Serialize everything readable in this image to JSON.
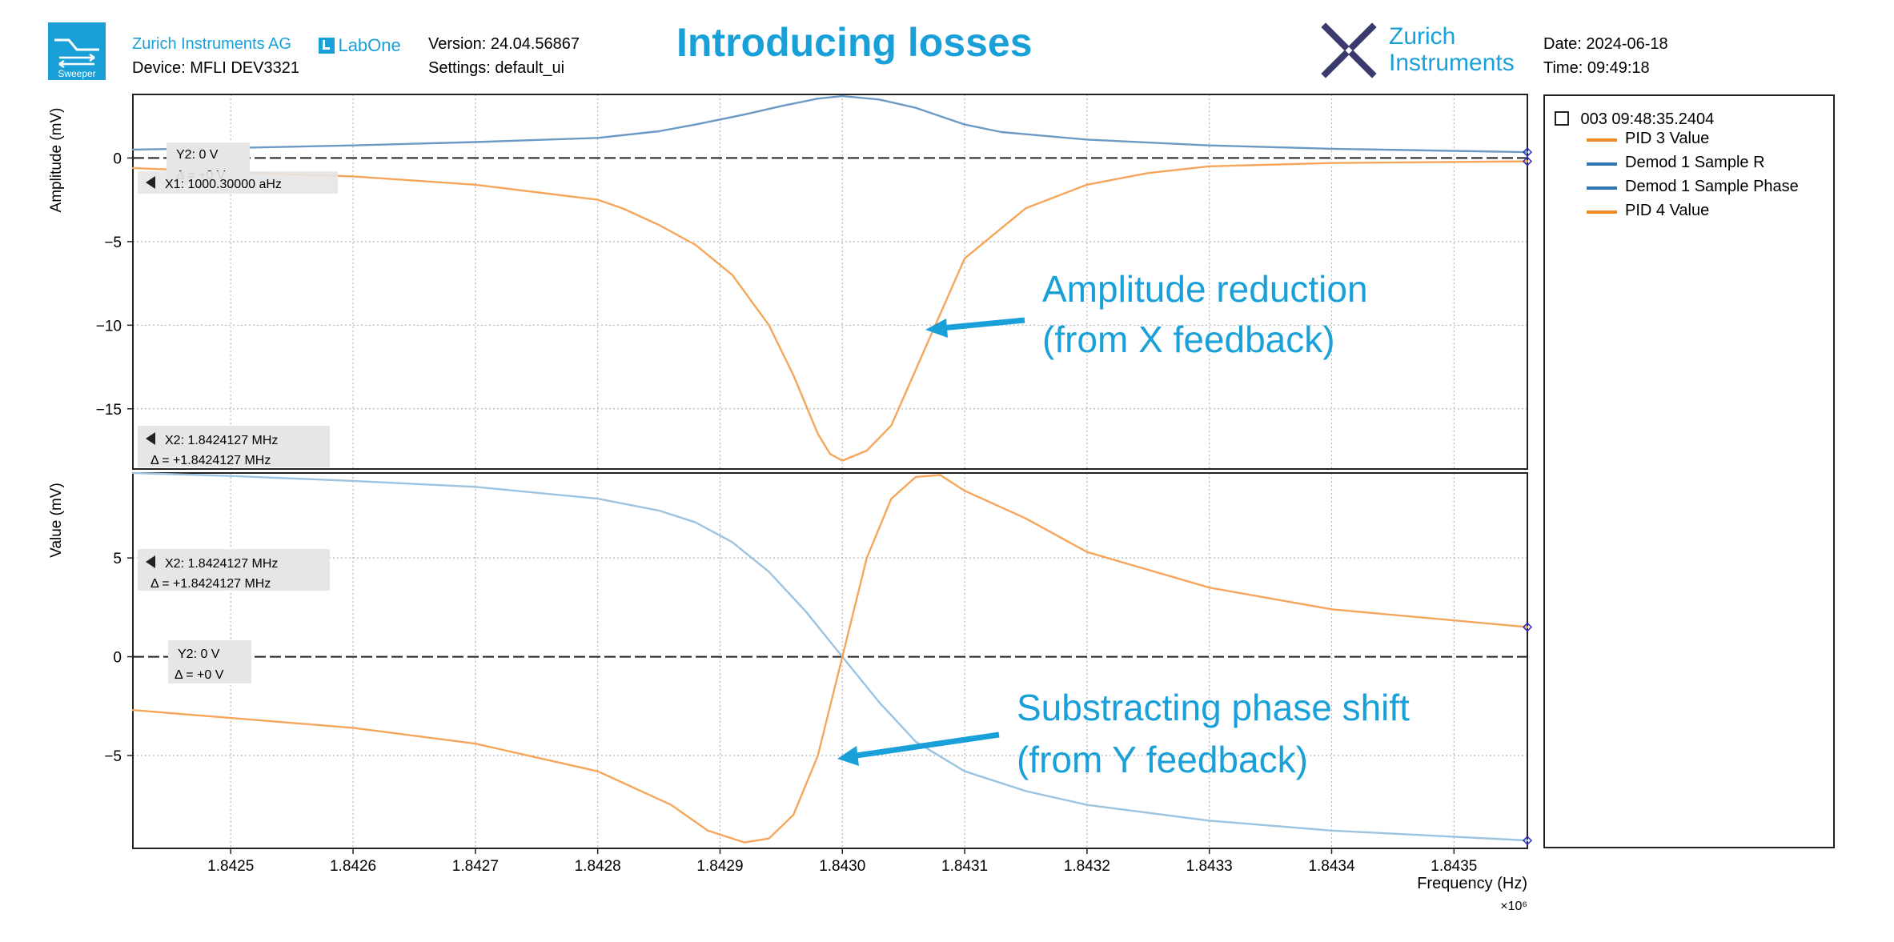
{
  "header": {
    "app_icon_label": "Sweeper",
    "company": "Zurich Instruments AG",
    "labone": "LabOne",
    "device": "Device: MFLI DEV3321",
    "version": "Version: 24.04.56867",
    "settings": "Settings: default_ui",
    "title": "Introducing losses",
    "logo_line1": "Zurich",
    "logo_line2": "Instruments",
    "date": "Date: 2024-06-18",
    "time": "Time: 09:49:18"
  },
  "legend": {
    "group_label": "003 09:48:35.2404",
    "items": [
      {
        "label": "PID 3 Value",
        "color": "#f08a24"
      },
      {
        "label": "Demod 1 Sample R",
        "color": "#2e75b6"
      },
      {
        "label": "Demod 1 Sample Phase",
        "color": "#2e75b6"
      },
      {
        "label": "PID 4 Value",
        "color": "#f08a24"
      }
    ]
  },
  "annotations": {
    "top_line1": "Amplitude reduction",
    "top_line2": "(from X feedback)",
    "bottom_line1": "Substracting phase shift",
    "bottom_line2": "(from Y feedback)"
  },
  "cursors": {
    "top_y2": "Y2: 0 V",
    "top_y2_delta": "Δ = +0 V",
    "top_x1": "X1: 1000.30000 aHz",
    "top_x2": "X2: 1.8424127 MHz",
    "top_x2_delta": "Δ = +1.8424127 MHz",
    "bottom_x2": "X2: 1.8424127 MHz",
    "bottom_x2_delta": "Δ = +1.8424127 MHz",
    "bottom_y2": "Y2: 0 V",
    "bottom_y2_delta": "Δ = +0 V"
  },
  "chart_data": [
    {
      "type": "line",
      "ylabel": "Amplitude (mV)",
      "xlim": [
        1.84242,
        1.84356
      ],
      "ylim": [
        -18.6,
        3.8
      ],
      "yticks": [
        0,
        -5,
        -10,
        -15
      ],
      "grid": true,
      "series": [
        {
          "name": "Demod 1 Sample R",
          "color": "#6a9ac4",
          "x": [
            1.84242,
            1.8425,
            1.8426,
            1.8427,
            1.8428,
            1.84285,
            1.84288,
            1.84292,
            1.84295,
            1.84298,
            1.843,
            1.84303,
            1.84306,
            1.8431,
            1.84313,
            1.8432,
            1.8433,
            1.8434,
            1.84356
          ],
          "y": [
            0.5,
            0.6,
            0.75,
            0.95,
            1.2,
            1.6,
            2.0,
            2.6,
            3.1,
            3.55,
            3.7,
            3.5,
            3.0,
            2.0,
            1.55,
            1.1,
            0.75,
            0.55,
            0.35
          ]
        },
        {
          "name": "PID 3 Value",
          "color": "#f5a65b",
          "x": [
            1.84242,
            1.8425,
            1.8426,
            1.8427,
            1.8428,
            1.84282,
            1.84285,
            1.84288,
            1.84291,
            1.84294,
            1.84296,
            1.84298,
            1.84299,
            1.843,
            1.84302,
            1.84304,
            1.84307,
            1.8431,
            1.84315,
            1.8432,
            1.84325,
            1.8433,
            1.8434,
            1.84356
          ],
          "y": [
            -0.6,
            -0.85,
            -1.1,
            -1.6,
            -2.5,
            -3.0,
            -4.0,
            -5.2,
            -7.0,
            -10.0,
            -13.0,
            -16.5,
            -17.7,
            -18.1,
            -17.5,
            -16.0,
            -11.0,
            -6.0,
            -3.0,
            -1.6,
            -0.9,
            -0.5,
            -0.3,
            -0.2
          ]
        }
      ]
    },
    {
      "type": "line",
      "ylabel": "Value (mV)",
      "xlabel": "Frequency (Hz)",
      "x_multiplier": "×10⁶",
      "xlim": [
        1.84242,
        1.84356
      ],
      "ylim": [
        -9.7,
        9.3
      ],
      "yticks": [
        5,
        0,
        -5
      ],
      "xticks": [
        "1.8425",
        "1.8426",
        "1.8427",
        "1.8428",
        "1.8429",
        "1.8430",
        "1.8431",
        "1.8432",
        "1.8433",
        "1.8434",
        "1.8435"
      ],
      "grid": true,
      "series": [
        {
          "name": "Demod 1 Sample Phase",
          "color": "#9cc3e0",
          "x": [
            1.84242,
            1.8425,
            1.8426,
            1.8427,
            1.8428,
            1.84285,
            1.84288,
            1.84291,
            1.84294,
            1.84297,
            1.843,
            1.84303,
            1.84306,
            1.8431,
            1.84315,
            1.8432,
            1.8433,
            1.8434,
            1.84356
          ],
          "y": [
            9.3,
            9.15,
            8.9,
            8.6,
            8.0,
            7.4,
            6.8,
            5.8,
            4.3,
            2.3,
            0.0,
            -2.3,
            -4.3,
            -5.8,
            -6.8,
            -7.5,
            -8.3,
            -8.8,
            -9.3
          ]
        },
        {
          "name": "PID 4 Value",
          "color": "#f5a65b",
          "x": [
            1.84242,
            1.8425,
            1.8426,
            1.8427,
            1.8428,
            1.84286,
            1.84289,
            1.84292,
            1.84294,
            1.84296,
            1.84298,
            1.843,
            1.84302,
            1.84304,
            1.84306,
            1.84308,
            1.8431,
            1.84315,
            1.8432,
            1.8433,
            1.8434,
            1.84356
          ],
          "y": [
            -2.7,
            -3.1,
            -3.6,
            -4.4,
            -5.8,
            -7.5,
            -8.8,
            -9.4,
            -9.2,
            -8.0,
            -5.0,
            0.0,
            5.0,
            8.0,
            9.1,
            9.2,
            8.4,
            7.0,
            5.3,
            3.5,
            2.4,
            1.5
          ]
        }
      ]
    }
  ]
}
